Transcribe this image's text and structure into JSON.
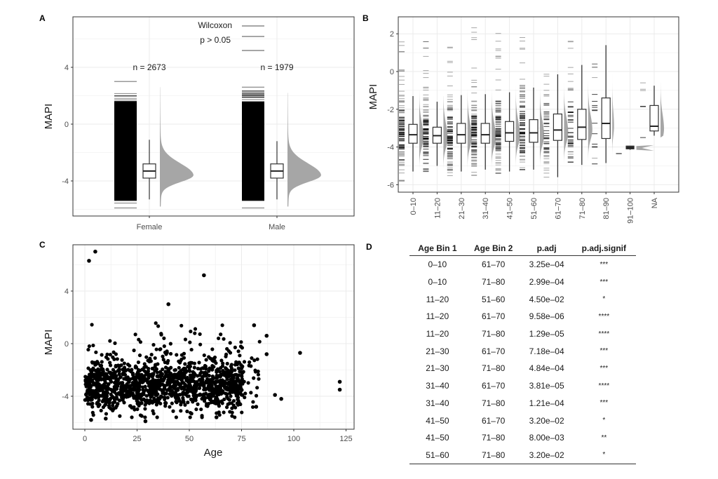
{
  "chart_data": [
    {
      "panel": "A",
      "type": "raincloud",
      "ylabel": "MAPI",
      "xlabel": "",
      "categories": [
        "Female",
        "Male"
      ],
      "yticks": [
        4,
        0,
        -4
      ],
      "ylim": [
        -6.5,
        7.5
      ],
      "n_labels": [
        "n = 2673",
        "n = 1979"
      ],
      "test_annotation": [
        "Wilcoxon",
        "p > 0.05"
      ],
      "boxes": [
        {
          "name": "Female",
          "q1": -3.8,
          "median": -3.3,
          "q3": -2.8,
          "whisker_low": -5.3,
          "whisker_high": -1.1,
          "rug_min": -5.9,
          "rug_max": 3.0
        },
        {
          "name": "Male",
          "q1": -3.8,
          "median": -3.3,
          "q3": -2.8,
          "whisker_low": -5.3,
          "whisker_high": -1.2,
          "rug_min": -5.9,
          "rug_max": 2.6
        }
      ],
      "density_peak": -3.6
    },
    {
      "panel": "B",
      "type": "raincloud",
      "ylabel": "MAPI",
      "xlabel": "",
      "categories": [
        "0–10",
        "11–20",
        "21–30",
        "31–40",
        "41–50",
        "51–60",
        "61–70",
        "71–80",
        "81–90",
        "91–100",
        "NA"
      ],
      "yticks": [
        2,
        0,
        -2,
        -4,
        -6
      ],
      "ylim": [
        -6.4,
        2.9
      ],
      "boxes": [
        {
          "q1": -3.8,
          "median": -3.35,
          "q3": -2.8,
          "low": -5.3,
          "high": -1.3,
          "rug_min": -5.8,
          "rug_max": 2.4
        },
        {
          "q1": -3.8,
          "median": -3.4,
          "q3": -2.95,
          "low": -5.0,
          "high": -1.6,
          "rug_min": -5.3,
          "rug_max": 2.2
        },
        {
          "q1": -3.8,
          "median": -3.35,
          "q3": -2.75,
          "low": -5.3,
          "high": -1.25,
          "rug_min": -5.6,
          "rug_max": 2.1
        },
        {
          "q1": -3.8,
          "median": -3.35,
          "q3": -2.75,
          "low": -5.2,
          "high": -1.2,
          "rug_min": -5.5,
          "rug_max": 2.4
        },
        {
          "q1": -3.7,
          "median": -3.25,
          "q3": -2.65,
          "low": -5.3,
          "high": -1.1,
          "rug_min": -5.4,
          "rug_max": 2.2
        },
        {
          "q1": -3.75,
          "median": -3.25,
          "q3": -2.55,
          "low": -5.2,
          "high": -0.85,
          "rug_min": -5.2,
          "rug_max": 2.2
        },
        {
          "q1": -3.65,
          "median": -3.1,
          "q3": -2.25,
          "low": -5.6,
          "high": -0.15,
          "rug_min": -5.6,
          "rug_max": 2.1
        },
        {
          "q1": -3.6,
          "median": -2.95,
          "q3": -2.0,
          "low": -4.95,
          "high": 0.35,
          "rug_min": -4.8,
          "rug_max": 1.9
        },
        {
          "q1": -3.55,
          "median": -2.75,
          "q3": -1.4,
          "low": -4.85,
          "high": 1.4,
          "rug_min": -4.9,
          "rug_max": 1.45
        },
        {
          "q1": -4.1,
          "median": -4.05,
          "q3": -3.95,
          "low": -4.15,
          "high": -3.95,
          "rug_min": -4.35,
          "rug_max": -4.35
        },
        {
          "q1": -3.15,
          "median": -2.9,
          "q3": -1.8,
          "low": -3.4,
          "high": -0.75,
          "rug_min": -3.5,
          "rug_max": -0.6
        }
      ]
    },
    {
      "panel": "C",
      "type": "scatter",
      "xlabel": "Age",
      "ylabel": "MAPI",
      "xticks": [
        0,
        25,
        50,
        75,
        100,
        125
      ],
      "yticks": [
        4,
        0,
        -4
      ],
      "xlim": [
        -6,
        128
      ],
      "ylim": [
        -6.5,
        7.5
      ],
      "outliers": [
        [
          2,
          6.3
        ],
        [
          5,
          7.0
        ],
        [
          57,
          5.2
        ],
        [
          40,
          3.0
        ],
        [
          103,
          -0.7
        ],
        [
          122,
          -2.9
        ],
        [
          122,
          -3.5
        ],
        [
          94,
          -4.2
        ],
        [
          91,
          -3.9
        ],
        [
          87,
          0.6
        ],
        [
          87,
          -0.8
        ],
        [
          81,
          1.4
        ],
        [
          29,
          -5.9
        ],
        [
          3,
          -5.8
        ],
        [
          10,
          -5.7
        ],
        [
          63,
          -5.6
        ],
        [
          82,
          -4.8
        ]
      ],
      "cloud": {
        "x_range": [
          0,
          84
        ],
        "y_center": -3.3,
        "y_spread": 1.1
      }
    },
    {
      "panel": "D",
      "type": "table",
      "columns": [
        "Age Bin 1",
        "Age Bin 2",
        "p.adj",
        "p.adj.signif"
      ],
      "rows": [
        [
          "0–10",
          "61–70",
          "3.25e–04",
          "***"
        ],
        [
          "0–10",
          "71–80",
          "2.99e–04",
          "***"
        ],
        [
          "11–20",
          "51–60",
          "4.50e–02",
          "*"
        ],
        [
          "11–20",
          "61–70",
          "9.58e–06",
          "****"
        ],
        [
          "11–20",
          "71–80",
          "1.29e–05",
          "****"
        ],
        [
          "21–30",
          "61–70",
          "7.18e–04",
          "***"
        ],
        [
          "21–30",
          "71–80",
          "4.84e–04",
          "***"
        ],
        [
          "31–40",
          "61–70",
          "3.81e–05",
          "****"
        ],
        [
          "31–40",
          "71–80",
          "1.21e–04",
          "***"
        ],
        [
          "41–50",
          "61–70",
          "3.20e–02",
          "*"
        ],
        [
          "41–50",
          "71–80",
          "8.00e–03",
          "**"
        ],
        [
          "51–60",
          "71–80",
          "3.20e–02",
          "*"
        ]
      ]
    }
  ],
  "panel_labels": [
    "A",
    "B",
    "C",
    "D"
  ],
  "colors": {
    "rug": "#000000",
    "density": "#a6a6a6",
    "grid": "#ebebeb",
    "frame": "#333333"
  }
}
